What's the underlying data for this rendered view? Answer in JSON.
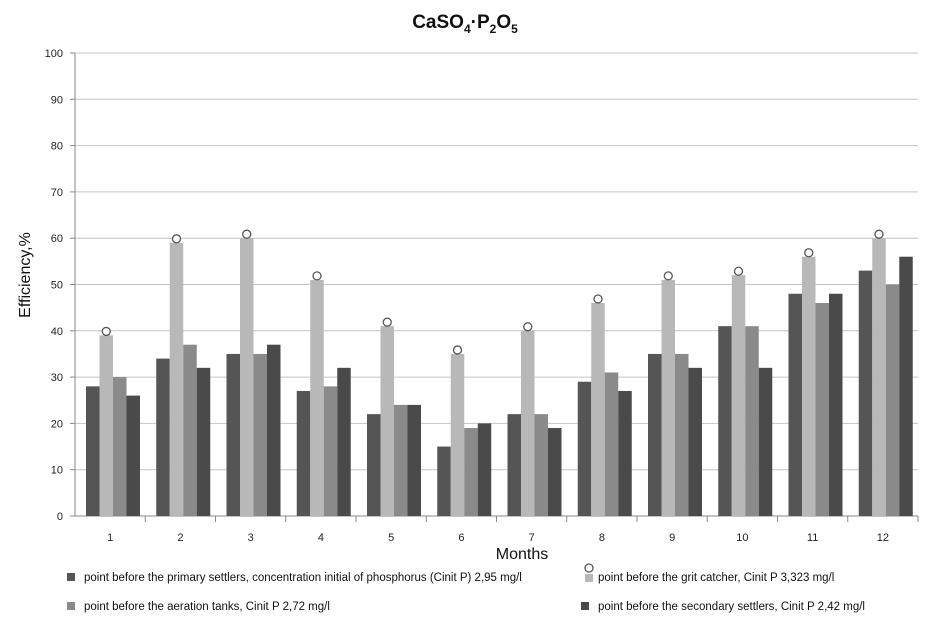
{
  "chart_data": {
    "type": "bar",
    "title": {
      "main": "CaSO",
      "sub1": "4",
      "mid": "·P",
      "sub2": "2",
      "mid2": "O",
      "sub3": "5"
    },
    "xlabel": "Months",
    "ylabel": "Efficiency,%",
    "ylim": [
      0,
      100
    ],
    "yticks": [
      0,
      10,
      20,
      30,
      40,
      50,
      60,
      70,
      80,
      90,
      100
    ],
    "grid": true,
    "legend_position": "bottom",
    "categories": [
      "1",
      "2",
      "3",
      "4",
      "5",
      "6",
      "7",
      "8",
      "9",
      "10",
      "11",
      "12"
    ],
    "series": [
      {
        "name": "point before the primary settlers, concentration initial of phosphorus (Cinit P) 2,95 mg/l",
        "color": "#555555",
        "values": [
          28,
          34,
          35,
          27,
          22,
          15,
          22,
          29,
          35,
          41,
          48,
          53
        ]
      },
      {
        "name": "point before the grit catcher, Cinit P 3,323 mg/l",
        "color": "#b8b8b8",
        "values": [
          39,
          59,
          60,
          51,
          41,
          35,
          40,
          46,
          51,
          52,
          56,
          60
        ]
      },
      {
        "name": "point before the aeration tanks, Cinit P 2,72 mg/l",
        "color": "#8a8a8a",
        "values": [
          30,
          37,
          35,
          28,
          24,
          19,
          22,
          31,
          35,
          41,
          46,
          50
        ]
      },
      {
        "name": "point before the secondary settlers, Cinit P 2,42 mg/l",
        "color": "#4a4a4a",
        "values": [
          26,
          32,
          37,
          32,
          24,
          20,
          19,
          27,
          32,
          32,
          48,
          56
        ]
      }
    ]
  }
}
